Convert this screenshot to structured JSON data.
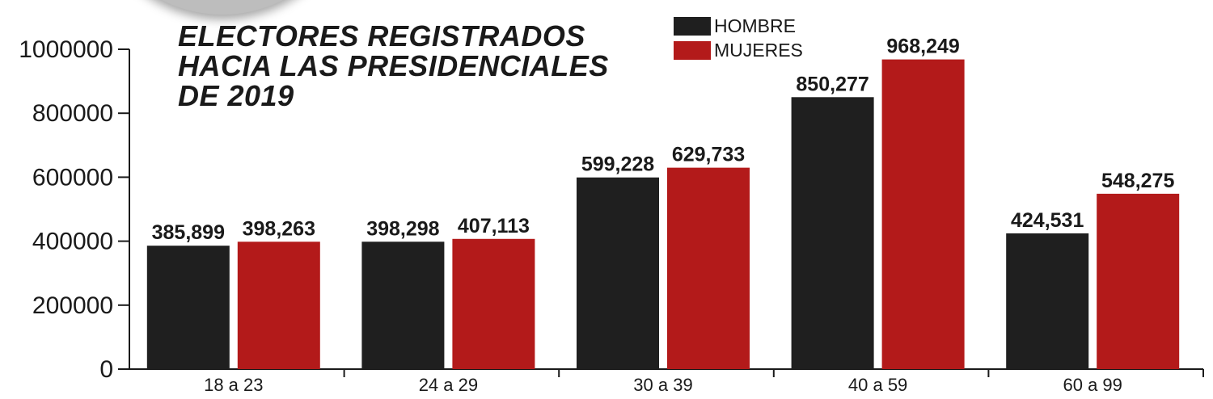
{
  "chart_data": {
    "type": "bar",
    "title_lines": [
      "ELECTORES REGISTRADOS",
      "HACIA LAS PRESIDENCIALES",
      "DE 2019"
    ],
    "categories": [
      "18 a 23",
      "24 a 29",
      "30 a 39",
      "40 a 59",
      "60 a 99"
    ],
    "series": [
      {
        "name": "HOMBRE",
        "color": "#1f1f1f",
        "values": [
          385899,
          398298,
          599228,
          850277,
          424531
        ],
        "value_labels": [
          "385,899",
          "398,298",
          "599,228",
          "850,277",
          "424,531"
        ]
      },
      {
        "name": "MUJERES",
        "color": "#b31a1a",
        "values": [
          398263,
          407113,
          629733,
          968249,
          548275
        ],
        "value_labels": [
          "398,263",
          "407,113",
          "629,733",
          "968,249",
          "548,275"
        ]
      }
    ],
    "ylim": [
      0,
      1000000
    ],
    "yticks": [
      0,
      200000,
      400000,
      600000,
      800000,
      1000000
    ],
    "ytick_labels": [
      "0",
      "200000",
      "400000",
      "600000",
      "800000",
      "1000000"
    ],
    "grid": false,
    "legend_position": "top-right"
  }
}
